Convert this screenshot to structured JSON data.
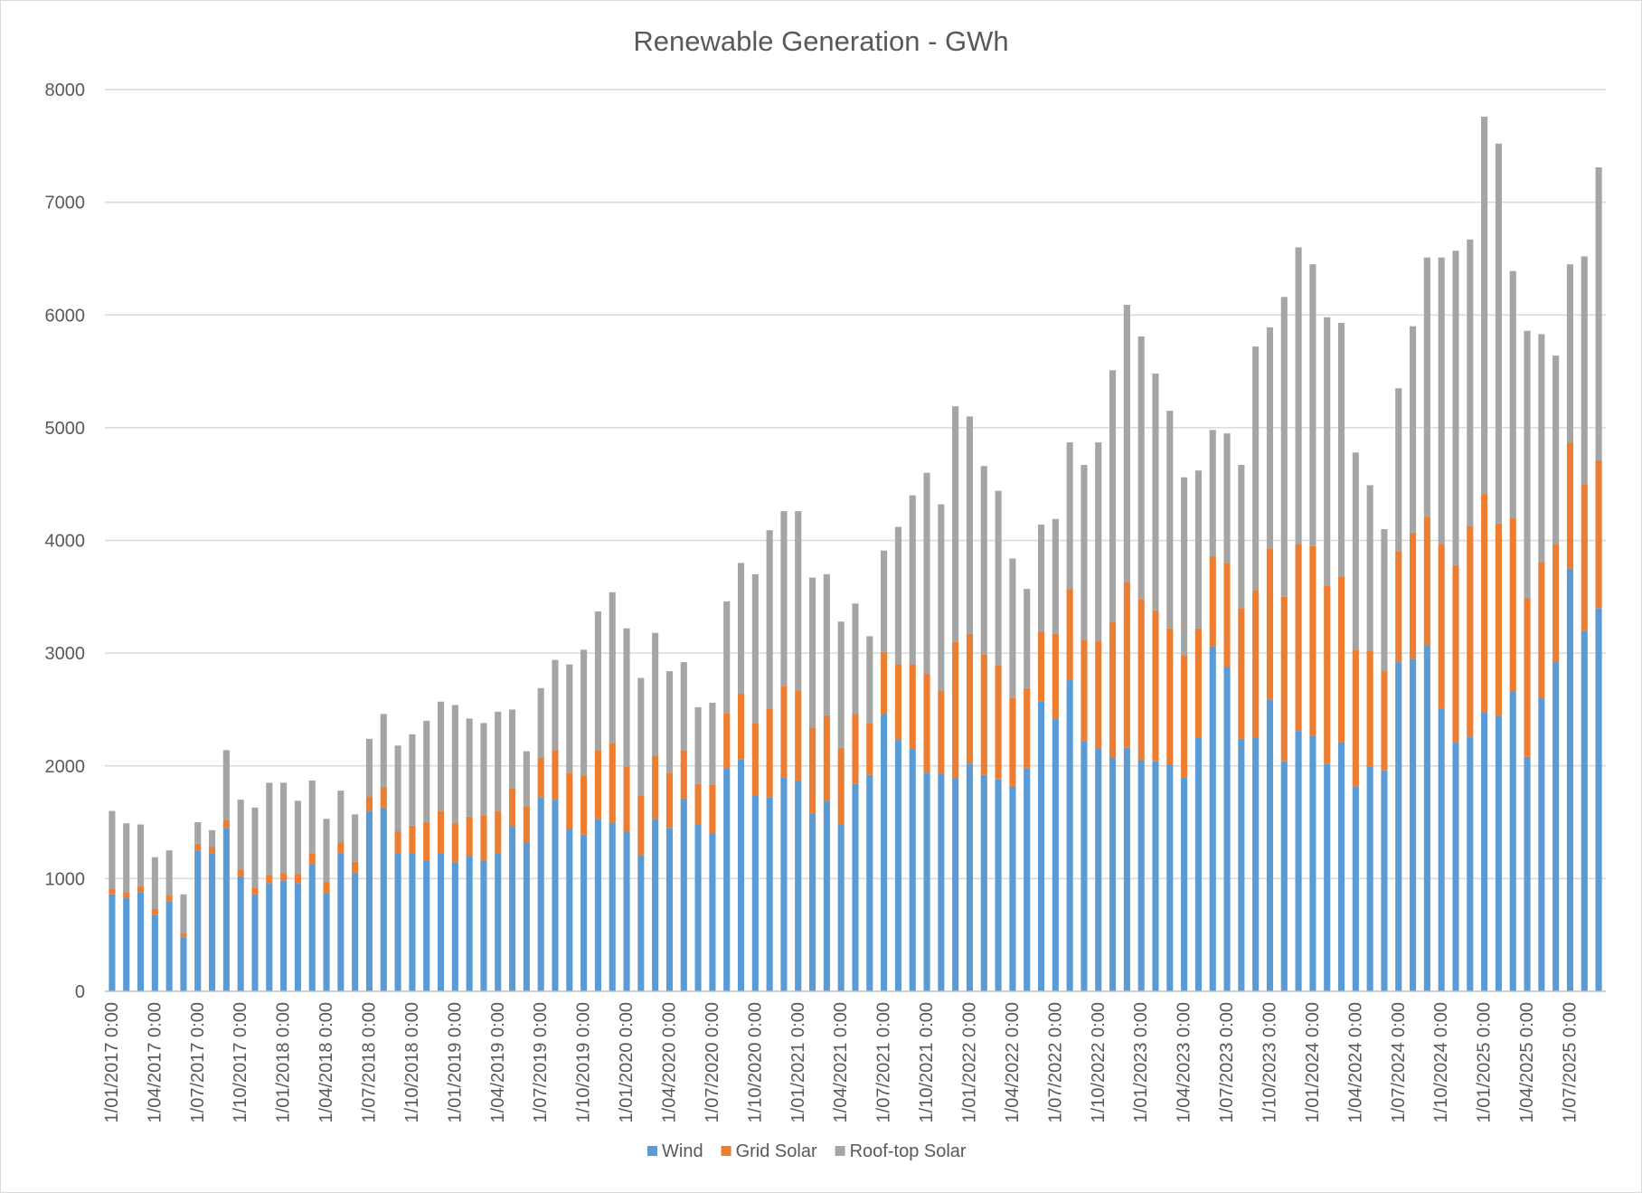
{
  "chart_data": {
    "type": "bar",
    "stacked": true,
    "title": "Renewable Generation - GWh",
    "xlabel": "",
    "ylabel": "",
    "ylim": [
      0,
      8000
    ],
    "yticks": [
      0,
      1000,
      2000,
      3000,
      4000,
      5000,
      6000,
      7000,
      8000
    ],
    "grid": true,
    "legend_position": "bottom",
    "x_tick_labels": [
      "1/01/2017 0:00",
      "1/04/2017 0:00",
      "1/07/2017 0:00",
      "1/10/2017 0:00",
      "1/01/2018 0:00",
      "1/04/2018 0:00",
      "1/07/2018 0:00",
      "1/10/2018 0:00",
      "1/01/2019 0:00",
      "1/04/2019 0:00",
      "1/07/2019 0:00",
      "1/10/2019 0:00",
      "1/01/2020 0:00",
      "1/04/2020 0:00",
      "1/07/2020 0:00",
      "1/10/2020 0:00",
      "1/01/2021 0:00",
      "1/04/2021 0:00",
      "1/07/2021 0:00",
      "1/10/2021 0:00",
      "1/01/2022 0:00",
      "1/04/2022 0:00",
      "1/07/2022 0:00",
      "1/10/2022 0:00",
      "1/01/2023 0:00",
      "1/04/2023 0:00",
      "1/07/2023 0:00",
      "1/10/2023 0:00",
      "1/01/2024 0:00",
      "1/04/2024 0:00",
      "1/07/2024 0:00",
      "1/10/2024 0:00",
      "1/01/2025 0:00",
      "1/04/2025 0:00",
      "1/07/2025 0:00"
    ],
    "x_tick_every": 3,
    "series": [
      {
        "name": "Wind",
        "color": "#5b9bd5",
        "values": [
          860,
          830,
          880,
          680,
          800,
          480,
          1250,
          1220,
          1450,
          1020,
          860,
          960,
          980,
          960,
          1130,
          870,
          1220,
          1050,
          1600,
          1630,
          1220,
          1220,
          1160,
          1220,
          1140,
          1200,
          1160,
          1220,
          1460,
          1320,
          1720,
          1700,
          1440,
          1390,
          1530,
          1500,
          1420,
          1210,
          1530,
          1450,
          1710,
          1480,
          1400,
          1980,
          2060,
          1740,
          1720,
          1900,
          1870,
          1580,
          1690,
          1480,
          1840,
          1920,
          2460,
          2230,
          2150,
          1940,
          1930,
          1890,
          2020,
          1920,
          1880,
          1820,
          1980,
          2570,
          2420,
          2760,
          2220,
          2150,
          2070,
          2160,
          2050,
          2040,
          2010,
          1900,
          2250,
          3060,
          2880,
          2240,
          2250,
          2590,
          2040,
          2310,
          2270,
          2020,
          2210,
          1820,
          1990,
          1960,
          2920,
          2950,
          3070,
          2510,
          2210,
          2260,
          2480,
          2440,
          2660,
          2080,
          2600,
          2920,
          3750,
          3200,
          3400
        ]
      },
      {
        "name": "Grid Solar",
        "color": "#ed7d31",
        "values": [
          50,
          50,
          50,
          50,
          50,
          40,
          60,
          60,
          70,
          60,
          60,
          70,
          70,
          80,
          90,
          100,
          100,
          100,
          130,
          180,
          200,
          250,
          340,
          380,
          350,
          350,
          400,
          380,
          340,
          320,
          350,
          440,
          500,
          520,
          610,
          700,
          570,
          530,
          560,
          490,
          430,
          360,
          430,
          490,
          580,
          640,
          790,
          810,
          800,
          760,
          760,
          680,
          620,
          460,
          550,
          670,
          750,
          880,
          730,
          1210,
          1150,
          1070,
          1010,
          780,
          710,
          620,
          750,
          810,
          900,
          960,
          1210,
          1470,
          1430,
          1340,
          1210,
          1080,
          970,
          800,
          920,
          1160,
          1310,
          1340,
          1460,
          1660,
          1680,
          1580,
          1470,
          1210,
          1030,
          880,
          980,
          1120,
          1140,
          1460,
          1570,
          1870,
          1930,
          1710,
          1540,
          1410,
          1210,
          1050,
          1120,
          1300,
          1310
        ]
      },
      {
        "name": "Roof-top Solar",
        "color": "#a5a5a5",
        "values": [
          690,
          610,
          550,
          460,
          400,
          340,
          190,
          150,
          620,
          620,
          710,
          820,
          800,
          650,
          650,
          560,
          460,
          420,
          510,
          650,
          760,
          810,
          900,
          970,
          1050,
          870,
          820,
          880,
          700,
          490,
          620,
          800,
          960,
          1120,
          1230,
          1340,
          1230,
          1040,
          1090,
          900,
          780,
          680,
          730,
          990,
          1160,
          1320,
          1580,
          1550,
          1590,
          1330,
          1250,
          1120,
          980,
          770,
          900,
          1220,
          1500,
          1780,
          1660,
          2090,
          1930,
          1670,
          1550,
          1240,
          880,
          950,
          1020,
          1300,
          1550,
          1760,
          2230,
          2460,
          2330,
          2100,
          1930,
          1580,
          1400,
          1120,
          1150,
          1270,
          2160,
          1960,
          2660,
          2630,
          2500,
          2380,
          2250,
          1750,
          1470,
          1260,
          1450,
          1830,
          2300,
          2540,
          2790,
          2540,
          3350,
          3370,
          2190,
          2370,
          2020,
          1670,
          1580,
          2020,
          2600
        ]
      }
    ]
  }
}
